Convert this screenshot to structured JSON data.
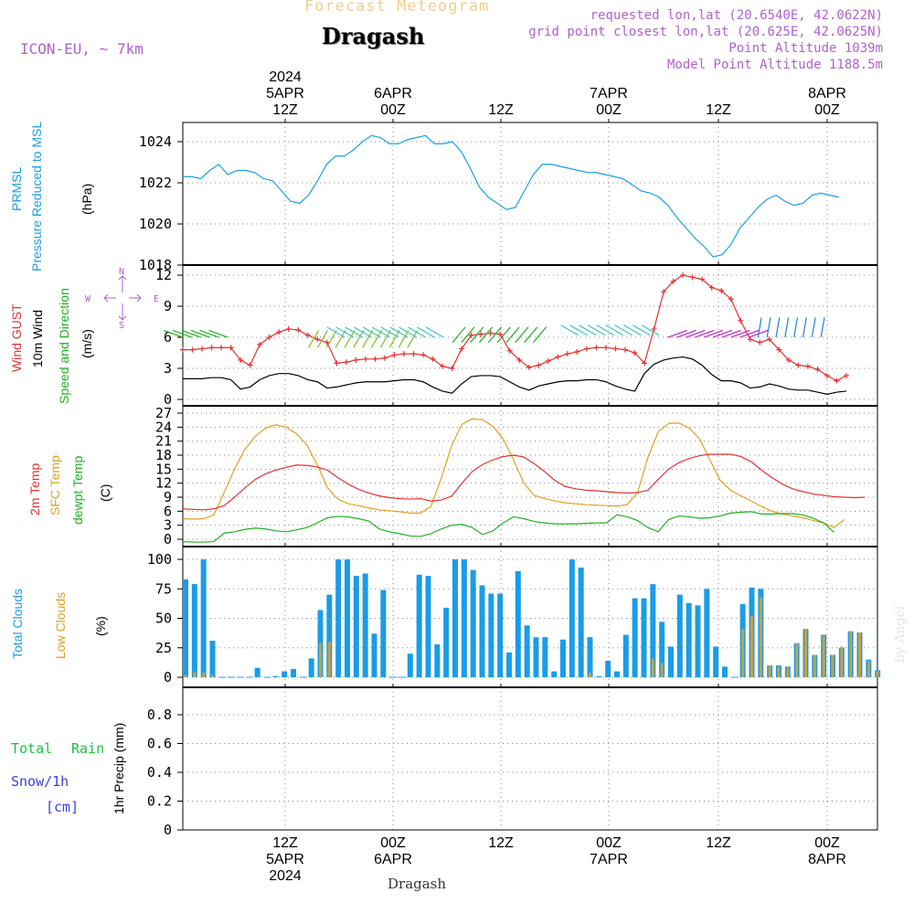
{
  "header": {
    "faint_title": "Forecast Meteogram",
    "location": "Dragash",
    "model": "ICON-EU, ~ 7km",
    "requested": "requested lon,lat (20.6540E, 42.0622N)",
    "grid_point": "grid point closest lon,lat (20.625E, 42.0625N)",
    "point_altitude": "Point Altitude 1039m",
    "model_altitude": "Model Point Altitude 1188.5m",
    "footer_location": "Dragash",
    "watermark": "by Angel"
  },
  "time_axis": {
    "top_ticks": [
      {
        "lines": [
          "2024",
          "5APR",
          "12Z"
        ]
      },
      {
        "lines": [
          "6APR",
          "00Z"
        ]
      },
      {
        "lines": [
          "12Z"
        ]
      },
      {
        "lines": [
          "7APR",
          "00Z"
        ]
      },
      {
        "lines": [
          "12Z"
        ]
      },
      {
        "lines": [
          "8APR",
          "00Z"
        ]
      }
    ],
    "bottom_ticks": [
      {
        "lines": [
          "12Z",
          "5APR",
          "2024"
        ]
      },
      {
        "lines": [
          "00Z",
          "6APR"
        ]
      },
      {
        "lines": [
          "12Z"
        ]
      },
      {
        "lines": [
          "00Z",
          "7APR"
        ]
      },
      {
        "lines": [
          "12Z"
        ]
      },
      {
        "lines": [
          "00Z",
          "8APR"
        ]
      }
    ]
  },
  "labels": {
    "pressure": {
      "a": "PRMSL",
      "b": "Pressure Reduced to MSL",
      "unit": "(hPa)"
    },
    "wind": {
      "a": "Wind GUST",
      "b": "10m Wind",
      "c": "Speed and Direction",
      "unit": "(m/s)",
      "compass": [
        "N",
        "E",
        "S",
        "W"
      ]
    },
    "temp": {
      "a": "2m Temp",
      "b": "SFC Temp",
      "c": "dewpt Temp",
      "unit": "(C)"
    },
    "cloud": {
      "a": "Total Clouds",
      "b": "Low Clouds",
      "unit": "(%)"
    },
    "precip": {
      "a": "Total",
      "b": "Rain",
      "c": "Snow/1h",
      "d": "[cm]",
      "e": "1hr Precip (mm)"
    }
  },
  "colors": {
    "pressure": "#1aa0e6",
    "gust": "#e83030",
    "wind": "#000000",
    "temp2m": "#e83030",
    "sfc": "#e0a020",
    "dew": "#20b020",
    "cloud_total": "#1a9ce8",
    "cloud_low": "#c8a040",
    "title_faint": "#f0d090",
    "meta": "#b060d0",
    "precip_total": "#20c040",
    "precip_snow": "#4040e0"
  },
  "chart_data": [
    {
      "type": "line",
      "name": "pressure",
      "ylabel": "(hPa)",
      "ylim": [
        1018,
        1025
      ],
      "yticks": [
        1018,
        1020,
        1022,
        1024
      ],
      "x_start_hour": 0,
      "series": [
        {
          "name": "PRMSL",
          "values": [
            1022.3,
            1022.3,
            1022.2,
            1022.6,
            1022.9,
            1022.4,
            1022.6,
            1022.6,
            1022.5,
            1022.2,
            1022.1,
            1021.6,
            1021.1,
            1021.0,
            1021.4,
            1022.1,
            1022.9,
            1023.3,
            1023.3,
            1023.6,
            1024.0,
            1024.3,
            1024.2,
            1023.9,
            1023.9,
            1024.1,
            1024.2,
            1024.3,
            1023.9,
            1023.9,
            1024.0,
            1023.5,
            1022.7,
            1021.8,
            1021.3,
            1021.0,
            1020.7,
            1020.8,
            1021.6,
            1022.4,
            1022.9,
            1022.9,
            1022.8,
            1022.7,
            1022.6,
            1022.5,
            1022.5,
            1022.4,
            1022.3,
            1022.2,
            1021.9,
            1021.6,
            1021.5,
            1021.3,
            1020.9,
            1020.3,
            1019.8,
            1019.3,
            1018.9,
            1018.4,
            1018.5,
            1019.0,
            1019.8,
            1020.3,
            1020.8,
            1021.2,
            1021.4,
            1021.1,
            1020.9,
            1021.0,
            1021.4,
            1021.5,
            1021.4,
            1021.3
          ]
        }
      ]
    },
    {
      "type": "line",
      "name": "wind",
      "ylabel": "(m/s)",
      "ylim": [
        0,
        13
      ],
      "yticks": [
        0,
        3,
        6,
        9,
        12
      ],
      "series": [
        {
          "name": "Wind GUST",
          "values": [
            4.8,
            4.8,
            4.9,
            5.0,
            5.0,
            5.0,
            3.8,
            3.3,
            5.3,
            6.0,
            6.5,
            6.8,
            6.7,
            6.2,
            5.8,
            5.5,
            3.5,
            3.6,
            3.8,
            3.9,
            3.9,
            4.0,
            4.3,
            4.4,
            4.4,
            4.3,
            3.9,
            3.2,
            3.0,
            4.9,
            6.2,
            6.3,
            6.4,
            6.3,
            4.7,
            3.8,
            3.1,
            3.3,
            3.7,
            4.1,
            4.4,
            4.6,
            4.9,
            5.0,
            5.0,
            4.9,
            4.8,
            4.5,
            3.5,
            6.8,
            10.4,
            11.4,
            12.0,
            11.8,
            11.6,
            10.8,
            10.5,
            9.7,
            7.6,
            5.8,
            5.5,
            5.8,
            4.8,
            3.8,
            3.3,
            3.2,
            2.9,
            2.3,
            1.8,
            2.3
          ]
        },
        {
          "name": "10m Wind",
          "values": [
            2.0,
            2.0,
            2.0,
            2.1,
            2.1,
            1.9,
            1.0,
            1.2,
            1.9,
            2.3,
            2.5,
            2.5,
            2.3,
            1.9,
            1.7,
            1.1,
            1.2,
            1.4,
            1.6,
            1.7,
            1.7,
            1.7,
            1.8,
            1.9,
            1.9,
            1.7,
            1.2,
            0.8,
            0.6,
            1.5,
            2.2,
            2.3,
            2.3,
            2.2,
            1.7,
            1.2,
            0.9,
            1.3,
            1.5,
            1.7,
            1.8,
            1.8,
            1.9,
            1.9,
            1.7,
            1.3,
            1.0,
            0.8,
            2.5,
            3.4,
            3.8,
            4.0,
            4.1,
            3.9,
            3.3,
            2.4,
            1.8,
            1.8,
            1.6,
            1.1,
            1.2,
            1.5,
            1.3,
            1.0,
            0.9,
            0.9,
            0.7,
            0.5,
            0.7,
            0.8
          ]
        }
      ]
    },
    {
      "type": "line",
      "name": "temperature",
      "ylabel": "(C)",
      "ylim": [
        -1,
        27
      ],
      "yticks": [
        0,
        3,
        6,
        9,
        12,
        15,
        18,
        21,
        24,
        27
      ],
      "series": [
        {
          "name": "2m Temp",
          "values": [
            6.5,
            6.4,
            6.3,
            6.5,
            7.2,
            9.0,
            11.0,
            12.8,
            14.0,
            14.8,
            15.4,
            15.9,
            15.8,
            15.5,
            14.8,
            13.2,
            11.8,
            10.7,
            9.9,
            9.3,
            8.9,
            8.7,
            8.6,
            8.7,
            8.2,
            8.4,
            9.2,
            12.0,
            14.5,
            16.0,
            17.0,
            17.7,
            18.0,
            17.6,
            16.2,
            14.5,
            12.6,
            11.3,
            10.8,
            10.5,
            10.4,
            10.2,
            10.0,
            9.9,
            10.0,
            10.5,
            12.8,
            15.0,
            16.4,
            17.3,
            17.9,
            18.2,
            18.2,
            18.2,
            17.7,
            16.6,
            14.8,
            13.2,
            11.8,
            10.8,
            10.2,
            9.7,
            9.4,
            9.1,
            9.0,
            8.9,
            9.0
          ]
        },
        {
          "name": "SFC Temp",
          "values": [
            4.4,
            4.3,
            4.4,
            5.2,
            10.0,
            15.0,
            19.2,
            22.0,
            23.8,
            24.5,
            24.0,
            22.6,
            20.2,
            16.0,
            11.0,
            8.6,
            7.6,
            7.2,
            6.7,
            6.3,
            6.1,
            5.9,
            5.6,
            5.6,
            7.0,
            13.0,
            20.0,
            24.6,
            25.8,
            25.6,
            24.2,
            21.5,
            17.0,
            12.0,
            9.4,
            8.7,
            8.2,
            7.8,
            7.6,
            7.4,
            7.3,
            7.2,
            7.1,
            7.4,
            10.0,
            17.5,
            23.0,
            24.8,
            24.9,
            23.8,
            21.5,
            17.0,
            12.6,
            10.5,
            9.3,
            8.2,
            7.0,
            6.0,
            5.4,
            5.0,
            4.6,
            4.0,
            3.5,
            2.5,
            4.2
          ]
        },
        {
          "name": "dewpt Temp",
          "values": [
            -0.5,
            -0.6,
            -0.6,
            -0.5,
            1.3,
            1.6,
            2.1,
            2.4,
            2.2,
            1.8,
            1.6,
            2.0,
            2.5,
            3.5,
            4.6,
            4.9,
            4.8,
            4.4,
            3.9,
            2.2,
            1.6,
            1.2,
            0.7,
            0.6,
            1.2,
            2.2,
            3.0,
            3.2,
            2.5,
            1.0,
            1.8,
            3.5,
            4.8,
            4.4,
            3.8,
            3.5,
            3.3,
            3.3,
            3.3,
            3.4,
            3.5,
            3.5,
            5.2,
            4.8,
            4.0,
            2.5,
            1.6,
            4.2,
            5.0,
            4.8,
            4.5,
            4.6,
            5.0,
            5.6,
            5.8,
            5.9,
            5.4,
            5.4,
            5.5,
            5.5,
            5.2,
            4.5,
            3.5,
            1.5
          ]
        }
      ]
    },
    {
      "type": "bar",
      "name": "clouds",
      "ylabel": "(%)",
      "ylim": [
        0,
        110
      ],
      "yticks": [
        0,
        25,
        50,
        75,
        100
      ],
      "series": [
        {
          "name": "Total Clouds",
          "values": [
            83,
            79,
            100,
            31,
            0,
            0,
            0,
            0,
            8,
            0,
            1,
            5,
            7,
            0,
            16,
            57,
            70,
            100,
            100,
            86,
            88,
            37,
            74,
            0,
            0,
            20,
            87,
            86,
            28,
            59,
            100,
            100,
            91,
            78,
            71,
            71,
            21,
            90,
            44,
            34,
            34,
            5,
            32,
            100,
            93,
            34,
            1,
            14,
            5,
            36,
            67,
            67,
            79,
            47,
            26,
            70,
            63,
            61,
            75,
            26,
            9,
            0,
            62,
            76,
            75,
            10,
            10,
            9,
            29,
            41,
            19,
            36,
            19,
            25,
            39,
            38,
            15,
            6
          ]
        },
        {
          "name": "Low Clouds",
          "values": [
            2,
            5,
            4,
            2,
            0,
            0,
            0,
            0,
            0,
            0,
            0,
            0,
            0,
            0,
            0,
            29,
            30,
            0,
            0,
            0,
            0,
            0,
            0,
            0,
            0,
            0,
            0,
            0,
            0,
            0,
            0,
            0,
            0,
            0,
            0,
            0,
            0,
            0,
            0,
            0,
            0,
            0,
            0,
            0,
            0,
            4,
            0,
            0,
            0,
            0,
            0,
            0,
            16,
            12,
            0,
            0,
            0,
            0,
            0,
            0,
            0,
            0,
            41,
            52,
            68,
            10,
            9,
            8,
            29,
            41,
            19,
            35,
            19,
            26,
            39,
            38,
            14,
            5
          ]
        }
      ]
    },
    {
      "type": "bar",
      "name": "precipitation",
      "ylabel": "1hr Precip (mm)",
      "ylim": [
        0,
        1
      ],
      "yticks": [
        0,
        0.2,
        0.4,
        0.6,
        0.8
      ],
      "series": [
        {
          "name": "Total Rain",
          "values": []
        },
        {
          "name": "Snow/1h",
          "values": []
        }
      ]
    }
  ]
}
